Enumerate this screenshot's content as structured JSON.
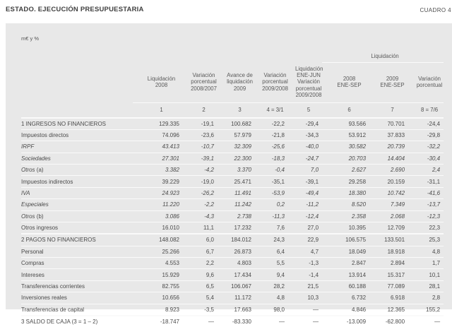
{
  "page": {
    "title": "ESTADO. EJECUCIÓN PRESUPUESTARIA",
    "corner_label": "CUADRO 4",
    "unit_label": "m€ y %"
  },
  "colors": {
    "panel_bg": "#e8e8e8",
    "text": "#4a4a4a",
    "header_text": "#5a5a5a",
    "separator": "#fafafa"
  },
  "table": {
    "group_header": "Liquidación",
    "column_headers": [
      "Liquidación\n2008",
      "Variación\nporcentual\n2008/2007",
      "Avance de\nliquidación\n2009",
      "Variación\nporcentual\n2009/2008",
      "Liquidación\nENE-JUN\nVariación\nporcentual\n2009/2008",
      "2008\nENE-SEP",
      "2009\nENE-SEP",
      "Variación\nporcentual"
    ],
    "column_numbers": [
      "1",
      "2",
      "3",
      "4 = 3/1",
      "5",
      "6",
      "7",
      "8 = 7/6"
    ],
    "rows": [
      {
        "label": "1 INGRESOS NO FINANCIEROS",
        "note": "",
        "section": true,
        "italic": false,
        "values": [
          "129.335",
          "-19,1",
          "100.682",
          "-22,2",
          "-29,4",
          "93.566",
          "70.701",
          "-24,4"
        ]
      },
      {
        "label": "Impuestos directos",
        "note": "",
        "section": false,
        "italic": false,
        "values": [
          "74.096",
          "-23,6",
          "57.979",
          "-21,8",
          "-34,3",
          "53.912",
          "37.833",
          "-29,8"
        ]
      },
      {
        "label": "IRPF",
        "note": "",
        "section": false,
        "italic": true,
        "values": [
          "43.413",
          "-10,7",
          "32.309",
          "-25,6",
          "-40,0",
          "30.582",
          "20.739",
          "-32,2"
        ]
      },
      {
        "label": "Sociedades",
        "note": "",
        "section": false,
        "italic": true,
        "values": [
          "27.301",
          "-39,1",
          "22.300",
          "-18,3",
          "-24,7",
          "20.703",
          "14.404",
          "-30,4"
        ]
      },
      {
        "label": "Otros",
        "note": " (a)",
        "section": false,
        "italic": true,
        "values": [
          "3.382",
          "-4,2",
          "3.370",
          "-0,4",
          "7,0",
          "2.627",
          "2.690",
          "2,4"
        ]
      },
      {
        "label": "Impuestos indirectos",
        "note": "",
        "section": false,
        "italic": false,
        "values": [
          "39.229",
          "-19,0",
          "25.471",
          "-35,1",
          "-39,1",
          "29.258",
          "20.159",
          "-31,1"
        ]
      },
      {
        "label": "IVA",
        "note": "",
        "section": false,
        "italic": true,
        "values": [
          "24.923",
          "-26,2",
          "11.491",
          "-53,9",
          "-49,4",
          "18.380",
          "10.742",
          "-41,6"
        ]
      },
      {
        "label": "Especiales",
        "note": "",
        "section": false,
        "italic": true,
        "values": [
          "11.220",
          "-2,2",
          "11.242",
          "0,2",
          "-11,2",
          "8.520",
          "7.349",
          "-13,7"
        ]
      },
      {
        "label": "Otros",
        "note": " (b)",
        "section": false,
        "italic": true,
        "values": [
          "3.086",
          "-4,3",
          "2.738",
          "-11,3",
          "-12,4",
          "2.358",
          "2.068",
          "-12,3"
        ]
      },
      {
        "label": "Otros ingresos",
        "note": "",
        "section": false,
        "italic": false,
        "values": [
          "16.010",
          "11,1",
          "17.232",
          "7,6",
          "27,0",
          "10.395",
          "12.709",
          "22,3"
        ]
      },
      {
        "label": "2 PAGOS NO FINANCIEROS",
        "note": "",
        "section": true,
        "italic": false,
        "values": [
          "148.082",
          "6,0",
          "184.012",
          "24,3",
          "22,9",
          "106.575",
          "133.501",
          "25,3"
        ]
      },
      {
        "label": "Personal",
        "note": "",
        "section": false,
        "italic": false,
        "values": [
          "25.266",
          "6,7",
          "26.873",
          "6,4",
          "4,7",
          "18.049",
          "18.918",
          "4,8"
        ]
      },
      {
        "label": "Compras",
        "note": "",
        "section": false,
        "italic": false,
        "values": [
          "4.553",
          "2,2",
          "4.803",
          "5,5",
          "-1,3",
          "2.847",
          "2.894",
          "1,7"
        ]
      },
      {
        "label": "Intereses",
        "note": "",
        "section": false,
        "italic": false,
        "values": [
          "15.929",
          "9,6",
          "17.434",
          "9,4",
          "-1,4",
          "13.914",
          "15.317",
          "10,1"
        ]
      },
      {
        "label": "Transferencias corrientes",
        "note": "",
        "section": false,
        "italic": false,
        "values": [
          "82.755",
          "6,5",
          "106.067",
          "28,2",
          "21,5",
          "60.188",
          "77.089",
          "28,1"
        ]
      },
      {
        "label": "Inversiones reales",
        "note": "",
        "section": false,
        "italic": false,
        "values": [
          "10.656",
          "5,4",
          "11.172",
          "4,8",
          "10,3",
          "6.732",
          "6.918",
          "2,8"
        ]
      },
      {
        "label": "Transferencias de capital",
        "note": "",
        "section": false,
        "italic": false,
        "values": [
          "8.923",
          "-3,5",
          "17.663",
          "98,0",
          "—",
          "4.846",
          "12.365",
          "155,2"
        ]
      },
      {
        "label": "3 SALDO DE CAJA (3 = 1 – 2)",
        "note": "",
        "section": true,
        "italic": false,
        "values": [
          "-18.747",
          "—",
          "-83.330",
          "—",
          "—",
          "-13.009",
          "-62.800",
          "—"
        ]
      }
    ]
  }
}
